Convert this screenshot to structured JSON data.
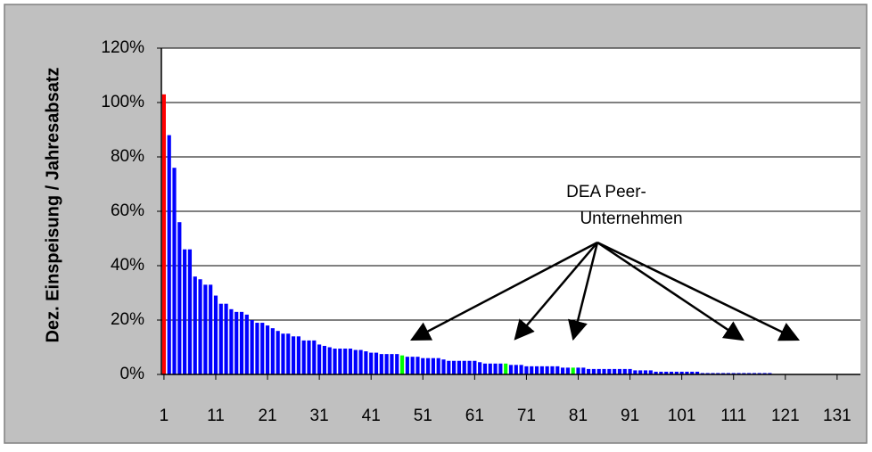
{
  "chart_data": {
    "type": "bar",
    "y_label": "Dez. Einspeisung / Jahresabsatz",
    "annotation": [
      "DEA Peer-",
      "Unternehmen"
    ],
    "categories": [
      "1",
      null,
      null,
      null,
      null,
      null,
      null,
      null,
      null,
      null,
      "11",
      null,
      null,
      null,
      null,
      null,
      null,
      null,
      null,
      null,
      "21",
      null,
      null,
      null,
      null,
      null,
      null,
      null,
      null,
      null,
      "31",
      null,
      null,
      null,
      null,
      null,
      null,
      null,
      null,
      null,
      "41",
      null,
      null,
      null,
      null,
      null,
      null,
      null,
      null,
      null,
      "51",
      null,
      null,
      null,
      null,
      null,
      null,
      null,
      null,
      null,
      "61",
      null,
      null,
      null,
      null,
      null,
      null,
      null,
      null,
      null,
      "71",
      null,
      null,
      null,
      null,
      null,
      null,
      null,
      null,
      null,
      "81",
      null,
      null,
      null,
      null,
      null,
      null,
      null,
      null,
      null,
      "91",
      null,
      null,
      null,
      null,
      null,
      null,
      null,
      null,
      null,
      "101",
      null,
      null,
      null,
      null,
      null,
      null,
      null,
      null,
      null,
      "111",
      null,
      null,
      null,
      null,
      null,
      null,
      null,
      null,
      null,
      "121",
      null,
      null,
      null,
      null,
      null,
      null,
      null,
      null,
      null,
      "131",
      null,
      null,
      null,
      null
    ],
    "values": [
      103,
      88,
      76,
      56,
      46,
      46,
      36,
      35,
      33,
      33,
      29,
      26,
      26,
      24,
      23,
      23,
      22,
      20,
      19,
      19,
      18,
      17,
      16,
      15,
      15,
      14,
      14,
      12.5,
      12.5,
      12.5,
      11,
      10.5,
      10,
      9.5,
      9.5,
      9.5,
      9.5,
      9,
      9,
      8.5,
      8,
      8,
      7.5,
      7.5,
      7.5,
      7.5,
      7,
      6.5,
      6.5,
      6.5,
      6,
      6,
      6,
      6,
      5.5,
      5,
      5,
      5,
      5,
      5,
      5,
      4.5,
      4,
      4,
      4,
      4,
      4,
      3.5,
      3.5,
      3.5,
      3,
      3,
      3,
      3,
      3,
      3,
      3,
      2.5,
      2.5,
      2.5,
      2.5,
      2.5,
      2,
      2,
      2,
      2,
      2,
      2,
      2,
      2,
      2,
      1.5,
      1.5,
      1.5,
      1.5,
      1,
      1,
      1,
      1,
      1,
      1,
      1,
      1,
      1,
      0.5,
      0.5,
      0.5,
      0.5,
      0.5,
      0.5,
      0.5,
      0.5,
      0.5,
      0.5,
      0.5,
      0.5,
      0.5,
      0.5,
      null,
      null,
      null,
      null,
      null,
      null,
      null,
      null,
      null,
      null,
      null,
      null,
      null,
      null,
      null,
      null,
      null
    ],
    "color": "#0000ff",
    "highlights": [
      {
        "index": 0,
        "color": "#ff0000"
      },
      {
        "index": 46,
        "color": "#00ff00"
      },
      {
        "index": 66,
        "color": "#00ff00"
      },
      {
        "index": 79,
        "color": "#00ff00"
      }
    ],
    "ylim": [
      0,
      120
    ],
    "yticks": [
      {
        "value": 0,
        "label": "0%"
      },
      {
        "value": 20,
        "label": "20%"
      },
      {
        "value": 40,
        "label": "40%"
      },
      {
        "value": 60,
        "label": "60%"
      },
      {
        "value": 80,
        "label": "80%"
      },
      {
        "value": 100,
        "label": "100%"
      },
      {
        "value": 120,
        "label": "120%"
      }
    ],
    "grid": true
  }
}
